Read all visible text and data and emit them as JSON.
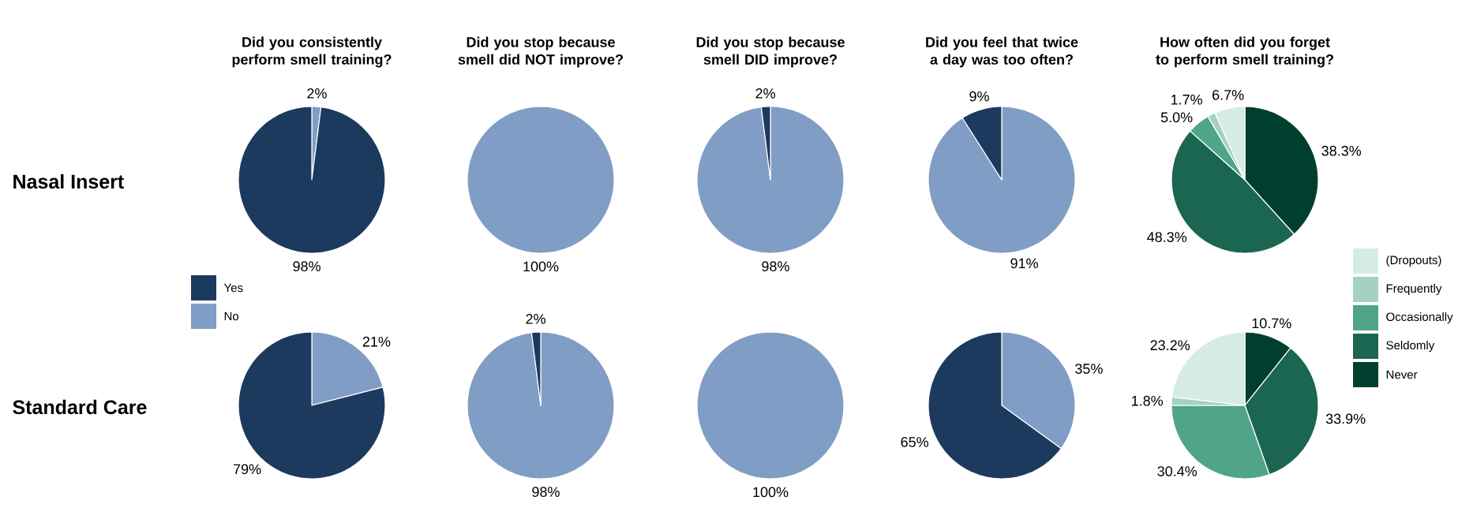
{
  "chart_data": [
    {
      "type": "pie",
      "title": "Did you consistently perform smell training?",
      "annotations": [
        "Nasal Insert"
      ],
      "categories": [
        "Yes",
        "No"
      ],
      "values": [
        98,
        2
      ],
      "value_labels": [
        "98%",
        "2%"
      ],
      "colors": [
        "#1c3a5e",
        "#809dc5"
      ],
      "legend": "bottom left"
    },
    {
      "type": "pie",
      "title": "Did you stop because smell did NOT improve?",
      "categories": [
        null,
        null
      ],
      "values": [
        0,
        100
      ],
      "value_labels": [
        null,
        "100%"
      ],
      "colors": [
        "#1c3a5e",
        "#809dc5"
      ]
    },
    {
      "type": "pie",
      "title": "Did you stop because smell DID improve?",
      "categories": [
        null,
        null
      ],
      "values": [
        2,
        98
      ],
      "value_labels": [
        "2%",
        "98%"
      ],
      "colors": [
        "#1c3a5e",
        "#809dc5"
      ]
    },
    {
      "type": "pie",
      "title": "Did you feel that twice a day was too often?",
      "categories": [
        null,
        null
      ],
      "values": [
        9,
        91
      ],
      "value_labels": [
        "9%",
        "91%"
      ],
      "colors": [
        "#1c3a5e",
        "#809dc5"
      ]
    },
    {
      "type": "pie",
      "title": "How often did you forget to perform smell training?",
      "categories": [
        "(Dropouts)",
        "Frequently",
        "Occasionally",
        "Seldomly",
        "Never"
      ],
      "values": [
        6.7,
        1.7,
        5.0,
        48.3,
        38.3
      ],
      "value_labels": [
        "6.7%",
        "1.7%",
        "5.0%",
        "48.3%",
        "38.3%"
      ],
      "colors": [
        "#d5ece5",
        "#a3d2c2",
        "#4fa48a",
        "#1b6651",
        "#003f30"
      ],
      "legend": "right"
    },
    {
      "type": "pie",
      "annotations": [
        "Standard Care"
      ],
      "categories": [
        null,
        null
      ],
      "values": [
        79,
        21
      ],
      "value_labels": [
        "79%",
        "21%"
      ],
      "colors": [
        "#1c3a5e",
        "#809dc5"
      ]
    },
    {
      "type": "pie",
      "categories": [
        null,
        null
      ],
      "values": [
        2,
        98
      ],
      "value_labels": [
        "2%",
        "98%"
      ],
      "colors": [
        "#1c3a5e",
        "#809dc5"
      ]
    },
    {
      "type": "pie",
      "categories": [
        null,
        null
      ],
      "values": [
        0,
        100
      ],
      "value_labels": [
        null,
        "100%"
      ],
      "colors": [
        "#1c3a5e",
        "#809dc5"
      ]
    },
    {
      "type": "pie",
      "categories": [
        null,
        null
      ],
      "values": [
        65,
        35
      ],
      "value_labels": [
        "65%",
        "35%"
      ],
      "colors": [
        "#1c3a5e",
        "#809dc5"
      ]
    },
    {
      "type": "pie",
      "categories": [
        null,
        null,
        null,
        null,
        null
      ],
      "values": [
        23.2,
        1.8,
        30.4,
        33.9,
        10.7
      ],
      "value_labels": [
        "23.2%",
        "1.8%",
        "30.4%",
        "33.9%",
        "10.7%"
      ],
      "colors": [
        "#d5ece5",
        "#a3d2c2",
        "#4fa48a",
        "#1b6651",
        "#003f30"
      ]
    }
  ]
}
